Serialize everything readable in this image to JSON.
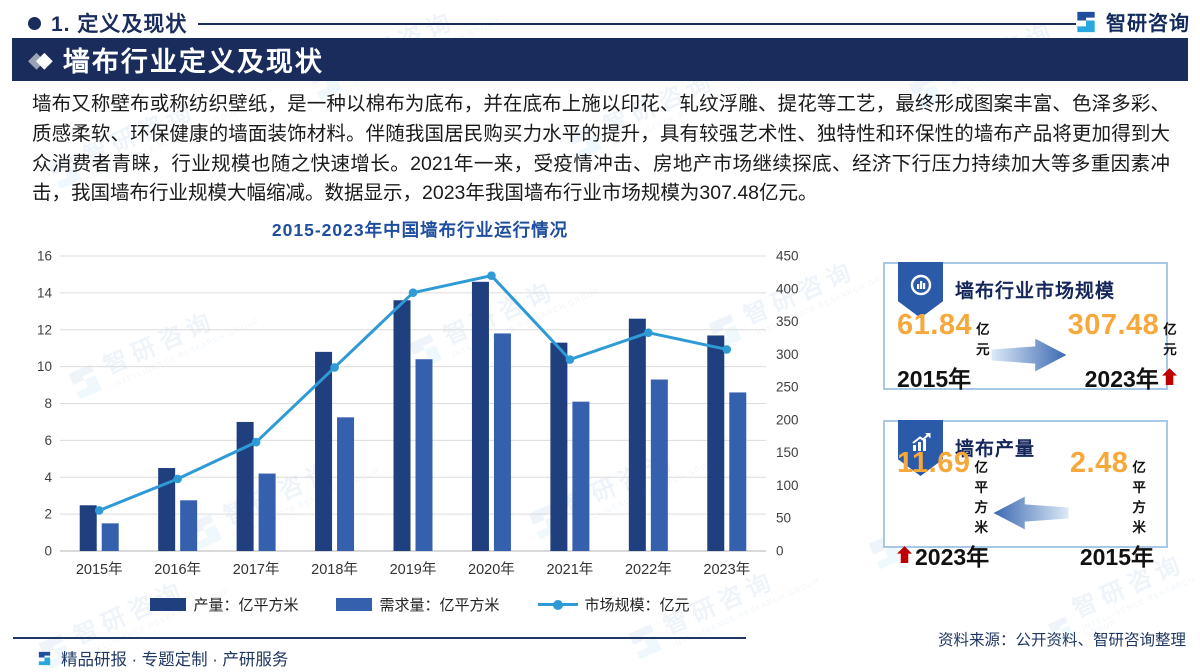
{
  "header": {
    "section_label": "1. 定义及现状",
    "logo_text": "智研咨询"
  },
  "banner": {
    "title": "墙布行业定义及现状"
  },
  "paragraph": "墙布又称壁布或称纺织壁纸，是一种以棉布为底布，并在底布上施以印花、轧纹浮雕、提花等工艺，最终形成图案丰富、色泽多彩、质感柔软、环保健康的墙面装饰材料。伴随我国居民购买力水平的提升，具有较强艺术性、独特性和环保性的墙布产品将更加得到大众消费者青睐，行业规模也随之快速增长。2021年一来，受疫情冲击、房地产市场继续探底、经济下行压力持续加大等多重因素冲击，我国墙布行业规模大幅缩减。数据显示，2023年我国墙布行业市场规模为307.48亿元。",
  "chart_data": {
    "type": "bar+line combo",
    "title": "2015-2023年中国墙布行业运行情况",
    "categories": [
      "2015年",
      "2016年",
      "2017年",
      "2018年",
      "2019年",
      "2020年",
      "2021年",
      "2022年",
      "2023年"
    ],
    "series": [
      {
        "name": "产量：亿平方米",
        "type": "bar",
        "axis": "left",
        "color": "#1F3F7E",
        "values": [
          2.48,
          4.5,
          7.0,
          10.8,
          13.6,
          14.6,
          11.3,
          12.6,
          11.69
        ]
      },
      {
        "name": "需求量：亿平方米",
        "type": "bar",
        "axis": "left",
        "color": "#3560AD",
        "values": [
          1.5,
          2.75,
          4.2,
          7.25,
          10.4,
          11.8,
          8.1,
          9.3,
          8.6
        ]
      },
      {
        "name": "市场规模：亿元",
        "type": "line",
        "axis": "right",
        "color": "#2E9BD6",
        "values": [
          61.84,
          110,
          166,
          280,
          394,
          420,
          292,
          333,
          307.48
        ]
      }
    ],
    "left_axis": {
      "min": 0,
      "max": 16,
      "step": 2
    },
    "right_axis": {
      "min": 0,
      "max": 450,
      "step": 50
    },
    "grid": true,
    "legend_position": "bottom"
  },
  "cards": [
    {
      "title": "墙布行业市场规模",
      "icon": "donut-chart-icon",
      "arrow_direction": "right",
      "from": {
        "value": "61.84",
        "unit": "亿元",
        "year": "2015年"
      },
      "to": {
        "value": "307.48",
        "unit": "亿元",
        "year": "2023年",
        "trend": "up"
      }
    },
    {
      "title": "墙布产量",
      "icon": "bar-chart-up-icon",
      "arrow_direction": "left",
      "to": {
        "value": "11.69",
        "unit": "亿平方米",
        "year": "2023年",
        "trend": "up"
      },
      "from": {
        "value": "2.48",
        "unit": "亿平方米",
        "year": "2015年"
      }
    }
  ],
  "footer": {
    "tagline": "精品研报 · 专题定制 · 产研服务",
    "source": "资料来源：公开资料、智研咨询整理"
  },
  "watermark": {
    "cn": "智研咨询",
    "en": "INTELLIGENCE RESEARCH GROUP"
  },
  "colors": {
    "brand_navy": "#1A2C5B",
    "banner_bg": "#1A2C5B",
    "chart_title_blue": "#1F4E9F",
    "bar_production": "#1F3F7E",
    "bar_demand": "#3560AD",
    "line_market": "#2E9BD6",
    "stat_orange": "#F7A83B",
    "trend_red": "#C00000",
    "card_border": "#A9C7E7"
  }
}
